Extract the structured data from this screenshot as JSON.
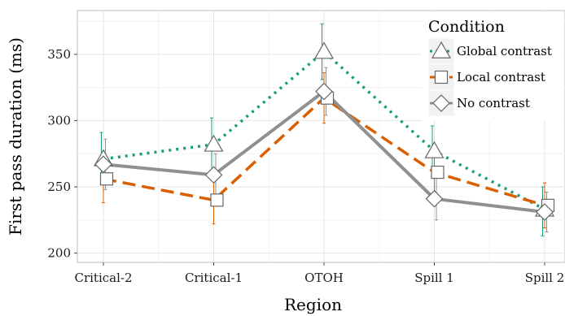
{
  "chart_data": {
    "type": "line",
    "xlabel": "Region",
    "ylabel": "First pass duration (ms)",
    "categories": [
      "Critical-2",
      "Critical-1",
      "OTOH",
      "Spill 1",
      "Spill 2"
    ],
    "ylim": [
      193,
      383
    ],
    "yticks": [
      200,
      250,
      300,
      350
    ],
    "grid": true,
    "legend": {
      "title": "Condition",
      "position": "top-right"
    },
    "series": [
      {
        "name": "Global contrast",
        "color": "#1b9e77",
        "dash": "dotted",
        "marker": "triangle",
        "values": [
          271,
          282,
          352,
          277,
          233
        ],
        "err_low": [
          252,
          262,
          331,
          258,
          213
        ],
        "err_high": [
          291,
          302,
          373,
          296,
          250
        ]
      },
      {
        "name": "Local contrast",
        "color": "#d95f02",
        "dash": "dashed",
        "marker": "square",
        "values": [
          256,
          240,
          317,
          261,
          236
        ],
        "err_low": [
          238,
          222,
          298,
          244,
          219
        ],
        "err_high": [
          274,
          258,
          336,
          278,
          253
        ]
      },
      {
        "name": "No contrast",
        "color": "#909090",
        "dash": "solid",
        "marker": "diamond",
        "values": [
          267,
          259,
          322,
          241,
          231
        ],
        "err_low": [
          248,
          243,
          304,
          225,
          216
        ],
        "err_high": [
          286,
          275,
          340,
          257,
          246
        ]
      }
    ]
  }
}
